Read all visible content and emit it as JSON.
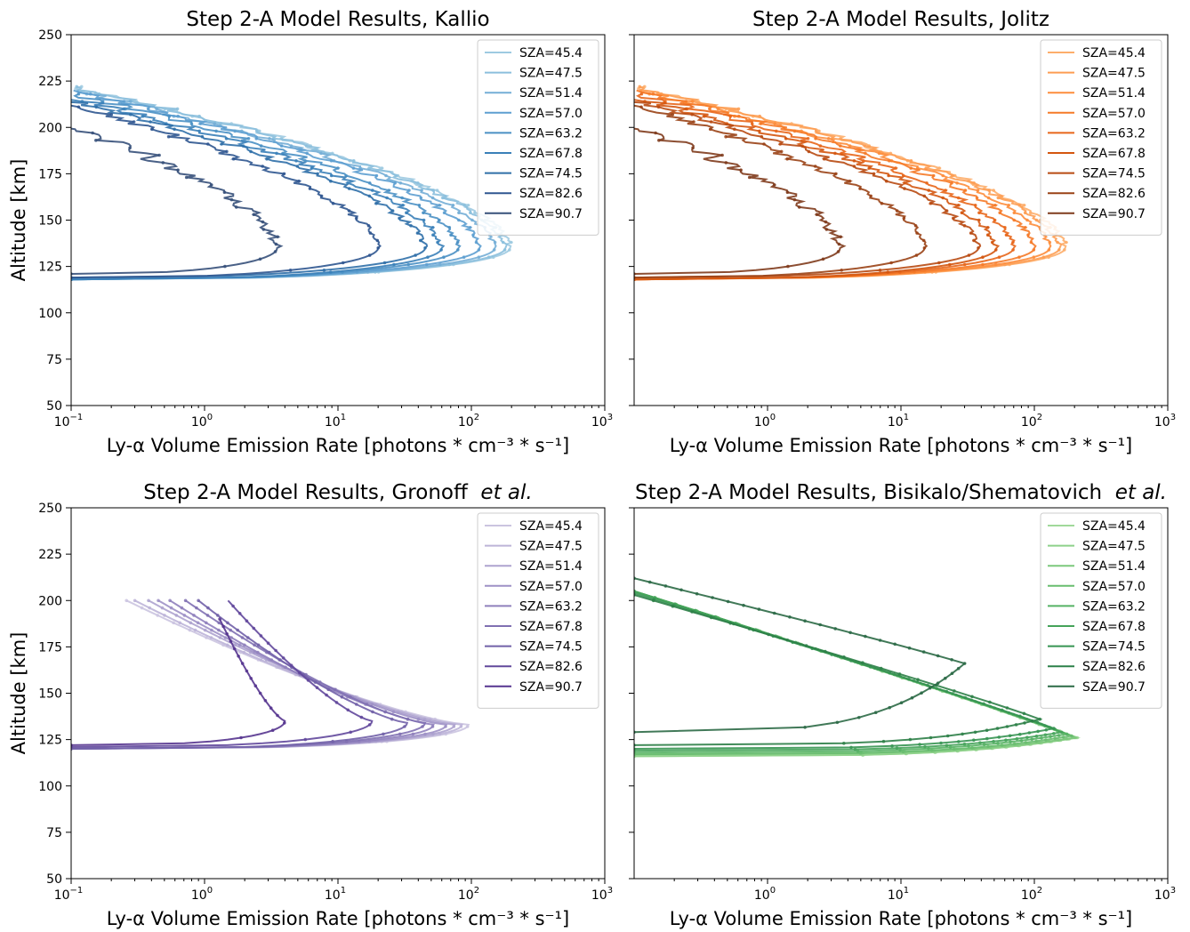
{
  "chart_data": [
    {
      "type": "line",
      "title": "Step 2-A Model Results, Kallio",
      "title_html": "Step 2-A Model Results, Kallio",
      "ylabel": "Altitude [km]",
      "show_ylabels": true,
      "xlabel": "Ly-α Volume Emission Rate [photons * cm⁻³ * s⁻¹]",
      "xscale": "log",
      "xlim": [
        0.1,
        1000
      ],
      "ylim": [
        50,
        250
      ],
      "xticks": [
        0.1,
        1,
        10,
        100,
        1000
      ],
      "xtick_labels": [
        [
          "10",
          "−1"
        ],
        [
          "10",
          "0"
        ],
        [
          "10",
          "1"
        ],
        [
          "10",
          "2"
        ],
        [
          "10",
          "3"
        ]
      ],
      "yticks": [
        50,
        75,
        100,
        125,
        150,
        175,
        200,
        225,
        250
      ],
      "legend": "top-right",
      "colors": [
        "#9ecae1",
        "#8bbfdd",
        "#74aed6",
        "#5d9fd0",
        "#4a90c4",
        "#3a80b8",
        "#2f6fa8",
        "#2f5690",
        "#36507a"
      ],
      "profile": "kallio",
      "series": [
        {
          "name": "SZA=45.4",
          "peak_x": 195,
          "peak_alt": 135,
          "top_alt": 222,
          "bottom_alt": 118
        },
        {
          "name": "SZA=47.5",
          "peak_x": 180,
          "peak_alt": 135,
          "top_alt": 222,
          "bottom_alt": 118
        },
        {
          "name": "SZA=51.4",
          "peak_x": 150,
          "peak_alt": 135,
          "top_alt": 220,
          "bottom_alt": 118
        },
        {
          "name": "SZA=57.0",
          "peak_x": 115,
          "peak_alt": 135,
          "top_alt": 220,
          "bottom_alt": 118
        },
        {
          "name": "SZA=63.2",
          "peak_x": 80,
          "peak_alt": 135,
          "top_alt": 218,
          "bottom_alt": 118
        },
        {
          "name": "SZA=67.8",
          "peak_x": 60,
          "peak_alt": 135,
          "top_alt": 216,
          "bottom_alt": 118
        },
        {
          "name": "SZA=74.5",
          "peak_x": 45,
          "peak_alt": 135,
          "top_alt": 214,
          "bottom_alt": 119
        },
        {
          "name": "SZA=82.6",
          "peak_x": 20,
          "peak_alt": 135,
          "top_alt": 212,
          "bottom_alt": 119
        },
        {
          "name": "SZA=90.7",
          "peak_x": 3.5,
          "peak_alt": 135,
          "top_alt": 200,
          "bottom_alt": 121
        }
      ]
    },
    {
      "type": "line",
      "title": "Step 2-A Model Results, Jolitz",
      "title_html": "Step 2-A Model Results, Jolitz",
      "ylabel": "",
      "show_ylabels": false,
      "xlabel": "Ly-α Volume Emission Rate [photons * cm⁻³ * s⁻¹]",
      "xscale": "log",
      "xlim": [
        0.1,
        1000
      ],
      "ylim": [
        50,
        250
      ],
      "xticks": [
        1,
        10,
        100,
        1000
      ],
      "xtick_labels": [
        [
          "10",
          "0"
        ],
        [
          "10",
          "1"
        ],
        [
          "10",
          "2"
        ],
        [
          "10",
          "3"
        ]
      ],
      "yticks": [
        50,
        75,
        100,
        125,
        150,
        175,
        200,
        225,
        250
      ],
      "legend": "top-right",
      "colors": [
        "#fdae6b",
        "#fd9d53",
        "#fd8d3c",
        "#f57a28",
        "#e8661a",
        "#d4560f",
        "#b84a12",
        "#9a4216",
        "#7f3b1c"
      ],
      "profile": "kallio",
      "series": [
        {
          "name": "SZA=45.4",
          "peak_x": 170,
          "peak_alt": 135,
          "top_alt": 222,
          "bottom_alt": 118
        },
        {
          "name": "SZA=47.5",
          "peak_x": 155,
          "peak_alt": 135,
          "top_alt": 222,
          "bottom_alt": 118
        },
        {
          "name": "SZA=51.4",
          "peak_x": 130,
          "peak_alt": 135,
          "top_alt": 220,
          "bottom_alt": 118
        },
        {
          "name": "SZA=57.0",
          "peak_x": 100,
          "peak_alt": 135,
          "top_alt": 220,
          "bottom_alt": 118
        },
        {
          "name": "SZA=63.2",
          "peak_x": 70,
          "peak_alt": 135,
          "top_alt": 218,
          "bottom_alt": 118
        },
        {
          "name": "SZA=67.8",
          "peak_x": 52,
          "peak_alt": 135,
          "top_alt": 216,
          "bottom_alt": 118
        },
        {
          "name": "SZA=74.5",
          "peak_x": 38,
          "peak_alt": 135,
          "top_alt": 214,
          "bottom_alt": 119
        },
        {
          "name": "SZA=82.6",
          "peak_x": 15,
          "peak_alt": 135,
          "top_alt": 212,
          "bottom_alt": 119
        },
        {
          "name": "SZA=90.7",
          "peak_x": 3.5,
          "peak_alt": 135,
          "top_alt": 200,
          "bottom_alt": 121
        }
      ]
    },
    {
      "type": "line",
      "title": "Step 2-A Model Results, Gronoff",
      "title_suffix": "et al.",
      "ylabel": "Altitude [km]",
      "show_ylabels": true,
      "xlabel": "Ly-α Volume Emission Rate [photons * cm⁻³ * s⁻¹]",
      "xscale": "log",
      "xlim": [
        0.1,
        1000
      ],
      "ylim": [
        50,
        250
      ],
      "xticks": [
        0.1,
        1,
        10,
        100,
        1000
      ],
      "xtick_labels": [
        [
          "10",
          "−1"
        ],
        [
          "10",
          "0"
        ],
        [
          "10",
          "1"
        ],
        [
          "10",
          "2"
        ],
        [
          "10",
          "3"
        ]
      ],
      "yticks": [
        50,
        75,
        100,
        125,
        150,
        175,
        200,
        225,
        250
      ],
      "legend": "top-right",
      "colors": [
        "#cbc4e0",
        "#bdb4d8",
        "#aea3cf",
        "#9e91c6",
        "#8f80bc",
        "#8070b2",
        "#7160a8",
        "#62489c",
        "#56358f"
      ],
      "profile": "gronoff",
      "series": [
        {
          "name": "SZA=45.4",
          "peak_x": 95,
          "peak_alt": 133,
          "top_x": 0.26,
          "top_alt": 200,
          "bottom_alt": 120
        },
        {
          "name": "SZA=47.5",
          "peak_x": 85,
          "peak_alt": 133,
          "top_x": 0.3,
          "top_alt": 200,
          "bottom_alt": 120
        },
        {
          "name": "SZA=51.4",
          "peak_x": 75,
          "peak_alt": 133,
          "top_x": 0.38,
          "top_alt": 200,
          "bottom_alt": 120
        },
        {
          "name": "SZA=57.0",
          "peak_x": 65,
          "peak_alt": 133,
          "top_x": 0.45,
          "top_alt": 200,
          "bottom_alt": 120
        },
        {
          "name": "SZA=63.2",
          "peak_x": 52,
          "peak_alt": 133,
          "top_x": 0.55,
          "top_alt": 200,
          "bottom_alt": 120
        },
        {
          "name": "SZA=67.8",
          "peak_x": 45,
          "peak_alt": 134,
          "top_x": 0.72,
          "top_alt": 200,
          "bottom_alt": 120
        },
        {
          "name": "SZA=74.5",
          "peak_x": 33,
          "peak_alt": 134,
          "top_x": 0.9,
          "top_alt": 200,
          "bottom_alt": 120
        },
        {
          "name": "SZA=82.6",
          "peak_x": 18,
          "peak_alt": 135,
          "top_x": 1.5,
          "top_alt": 200,
          "bottom_alt": 121
        },
        {
          "name": "SZA=90.7",
          "peak_x": 4,
          "peak_alt": 135,
          "top_x": 1.3,
          "top_alt": 190,
          "bottom_alt": 122
        }
      ]
    },
    {
      "type": "line",
      "title": "Step 2-A Model Results, Bisikalo/Shematovich",
      "title_suffix": "et al.",
      "ylabel": "",
      "show_ylabels": false,
      "xlabel": "Ly-α Volume Emission Rate [photons * cm⁻³ * s⁻¹]",
      "xscale": "log",
      "xlim": [
        0.1,
        1000
      ],
      "ylim": [
        50,
        250
      ],
      "xticks": [
        1,
        10,
        100,
        1000
      ],
      "xtick_labels": [
        [
          "10",
          "0"
        ],
        [
          "10",
          "1"
        ],
        [
          "10",
          "2"
        ],
        [
          "10",
          "3"
        ]
      ],
      "yticks": [
        50,
        75,
        100,
        125,
        150,
        175,
        200,
        225,
        250
      ],
      "legend": "top-right",
      "colors": [
        "#a1d99b",
        "#8ed18a",
        "#7cc87c",
        "#68bd6f",
        "#56b264",
        "#45a35a",
        "#369452",
        "#2d8048",
        "#2c6a46"
      ],
      "profile": "bisikalo",
      "series": [
        {
          "name": "SZA=45.4",
          "peak_x": 210,
          "peak_alt": 126,
          "top_alt": 205,
          "bottom_alt": 116
        },
        {
          "name": "SZA=47.5",
          "peak_x": 205,
          "peak_alt": 126,
          "top_alt": 205,
          "bottom_alt": 116
        },
        {
          "name": "SZA=51.4",
          "peak_x": 200,
          "peak_alt": 126,
          "top_alt": 205,
          "bottom_alt": 117
        },
        {
          "name": "SZA=57.0",
          "peak_x": 190,
          "peak_alt": 127,
          "top_alt": 205,
          "bottom_alt": 117
        },
        {
          "name": "SZA=63.2",
          "peak_x": 175,
          "peak_alt": 128,
          "top_alt": 205,
          "bottom_alt": 118
        },
        {
          "name": "SZA=67.8",
          "peak_x": 160,
          "peak_alt": 129,
          "top_alt": 205,
          "bottom_alt": 119
        },
        {
          "name": "SZA=74.5",
          "peak_x": 140,
          "peak_alt": 131,
          "top_alt": 204,
          "bottom_alt": 120
        },
        {
          "name": "SZA=82.6",
          "peak_x": 110,
          "peak_alt": 136,
          "top_alt": 203,
          "bottom_alt": 122
        },
        {
          "name": "SZA=90.7",
          "peak_x": 30,
          "peak_alt": 166,
          "top_alt": 212,
          "bottom_alt": 129
        }
      ]
    }
  ]
}
